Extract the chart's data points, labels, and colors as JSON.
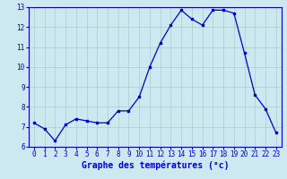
{
  "x": [
    0,
    1,
    2,
    3,
    4,
    5,
    6,
    7,
    8,
    9,
    10,
    11,
    12,
    13,
    14,
    15,
    16,
    17,
    18,
    19,
    20,
    21,
    22,
    23
  ],
  "y": [
    7.2,
    6.9,
    6.3,
    7.1,
    7.4,
    7.3,
    7.2,
    7.2,
    7.8,
    7.8,
    8.5,
    10.0,
    11.2,
    12.1,
    12.85,
    12.4,
    12.1,
    12.85,
    12.85,
    12.7,
    10.7,
    8.6,
    7.9,
    6.7
  ],
  "line_color": "#0000cc",
  "marker": "s",
  "markersize": 1.8,
  "bg_color": "#cce8f0",
  "grid_color": "#aacccc",
  "xlabel": "Graphe des températures (°c)",
  "ylim": [
    6,
    13
  ],
  "xlim": [
    -0.5,
    23.5
  ],
  "yticks": [
    6,
    7,
    8,
    9,
    10,
    11,
    12,
    13
  ],
  "xticks": [
    0,
    1,
    2,
    3,
    4,
    5,
    6,
    7,
    8,
    9,
    10,
    11,
    12,
    13,
    14,
    15,
    16,
    17,
    18,
    19,
    20,
    21,
    22,
    23
  ],
  "tick_fontsize": 5.5,
  "xlabel_fontsize": 7,
  "linewidth": 0.9
}
